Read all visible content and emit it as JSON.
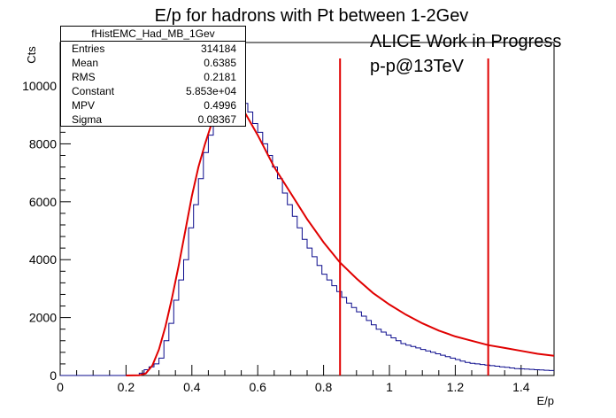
{
  "colors": {
    "histogram": "#0a0a8c",
    "fit": "#e00000",
    "cut_lines": "#e00000",
    "axes": "#000000"
  },
  "labels": {
    "work_in_progress": "ALICE Work in Progress",
    "collision": "p-p@13TeV"
  },
  "stats": {
    "name": "fHistEMC_Had_MB_1Gev",
    "rows": [
      {
        "label": "Entries",
        "value": "314184"
      },
      {
        "label": "Mean",
        "value": "0.6385"
      },
      {
        "label": "RMS",
        "value": "0.2181"
      },
      {
        "label": "Constant",
        "value": "5.853e+04"
      },
      {
        "label": "MPV",
        "value": "0.4996"
      },
      {
        "label": "Sigma",
        "value": "0.08367"
      }
    ]
  },
  "chart_data": {
    "type": "histogram",
    "title": "E/p for hadrons with Pt between 1-2Gev",
    "xlabel": "E/p",
    "ylabel": "Cts",
    "xlim": [
      0,
      1.5
    ],
    "ylim": [
      0,
      11500
    ],
    "x_ticks": [
      0,
      0.2,
      0.4,
      0.6,
      0.8,
      1,
      1.2,
      1.4
    ],
    "x_tick_labels": [
      "0",
      "0.2",
      "0.4",
      "0.6",
      "0.8",
      "1",
      "1.2",
      "1.4"
    ],
    "y_ticks": [
      0,
      2000,
      4000,
      6000,
      8000,
      10000
    ],
    "y_tick_labels": [
      "0",
      "2000",
      "4000",
      "6000",
      "8000",
      "10000"
    ],
    "grid": false,
    "legend": "none",
    "series": [
      {
        "kind": "histogram",
        "bin_width": 0.015,
        "x_start": 0,
        "values": [
          0,
          0,
          0,
          0,
          0,
          0,
          0,
          0,
          0,
          0,
          0,
          0,
          0,
          0,
          0,
          0,
          80,
          200,
          300,
          400,
          600,
          1200,
          1800,
          2600,
          3300,
          4000,
          5100,
          5900,
          6800,
          7700,
          8300,
          8800,
          9100,
          9300,
          9500,
          9600,
          9600,
          9400,
          9100,
          8700,
          8400,
          8000,
          7600,
          7200,
          6800,
          6300,
          5900,
          5500,
          5100,
          4700,
          4400,
          4100,
          3800,
          3500,
          3300,
          3100,
          2900,
          2700,
          2500,
          2350,
          2200,
          2050,
          1900,
          1750,
          1600,
          1500,
          1400,
          1300,
          1200,
          1100,
          1050,
          1000,
          950,
          900,
          850,
          800,
          750,
          700,
          650,
          600,
          550,
          500,
          450,
          420,
          400,
          380,
          360,
          340,
          320,
          300,
          280,
          260,
          240,
          230,
          220,
          210,
          200,
          190,
          180,
          170
        ]
      },
      {
        "kind": "fit",
        "x": [
          0.2,
          0.24,
          0.26,
          0.28,
          0.3,
          0.32,
          0.34,
          0.36,
          0.38,
          0.4,
          0.42,
          0.44,
          0.46,
          0.48,
          0.5,
          0.52,
          0.54,
          0.56,
          0.6,
          0.65,
          0.7,
          0.75,
          0.8,
          0.85,
          0.9,
          0.95,
          1.0,
          1.05,
          1.1,
          1.15,
          1.2,
          1.25,
          1.3,
          1.35,
          1.4,
          1.45,
          1.5
        ],
        "y": [
          0,
          10,
          70,
          350,
          900,
          1700,
          2700,
          3800,
          5000,
          6200,
          7200,
          8000,
          8700,
          9200,
          9500,
          9500,
          9400,
          9100,
          8300,
          7200,
          6300,
          5400,
          4600,
          3900,
          3350,
          2850,
          2450,
          2100,
          1800,
          1550,
          1350,
          1200,
          1050,
          950,
          850,
          750,
          680
        ]
      }
    ],
    "vertical_lines": [
      0.85,
      1.3
    ]
  }
}
